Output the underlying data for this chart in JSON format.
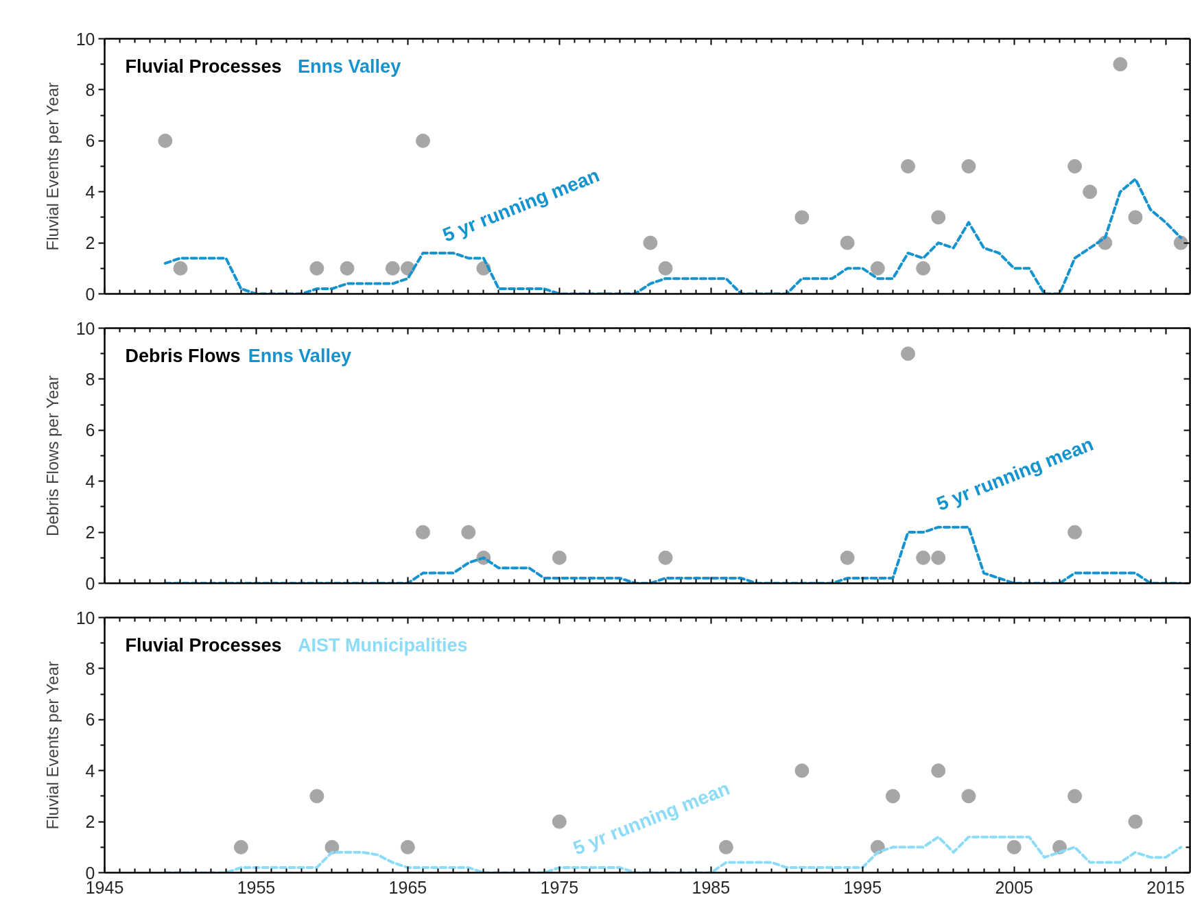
{
  "chart_data": [
    {
      "type": "scatter",
      "title": "Fluvial Processes",
      "ylabel": "Fluvial Events per Year",
      "tick_labels": "y",
      "xlim": [
        1945,
        2016.6
      ],
      "xticks": [
        1945,
        1955,
        1965,
        1975,
        1985,
        1995,
        2005,
        2015
      ],
      "ylim": [
        0,
        10
      ],
      "yticks": [
        0,
        2,
        4,
        6,
        8,
        10
      ],
      "series": [
        {
          "marker": "circle",
          "color": "#a6a6a6",
          "x": [
            1949,
            1950,
            1959,
            1961,
            1964,
            1965,
            1966,
            1970,
            1981,
            1982,
            1991,
            1994,
            1996,
            1998,
            1999,
            2000,
            2002,
            2009,
            2010,
            2011,
            2012,
            2013,
            2016
          ],
          "values": [
            6,
            1,
            1,
            1,
            1,
            1,
            6,
            1,
            2,
            1,
            3,
            2,
            1,
            5,
            1,
            3,
            5,
            5,
            4,
            2,
            9,
            3,
            2
          ]
        },
        {
          "type": "line",
          "name": "Enns Valley",
          "color": "#1493cf",
          "line_style": "dashed",
          "x": [
            1949,
            1950,
            1951,
            1952,
            1953,
            1954,
            1955,
            1956,
            1957,
            1958,
            1959,
            1960,
            1961,
            1962,
            1963,
            1964,
            1965,
            1966,
            1967,
            1968,
            1969,
            1970,
            1971,
            1972,
            1973,
            1974,
            1975,
            1976,
            1977,
            1978,
            1979,
            1980,
            1981,
            1982,
            1983,
            1984,
            1985,
            1986,
            1987,
            1988,
            1989,
            1990,
            1991,
            1992,
            1993,
            1994,
            1995,
            1996,
            1997,
            1998,
            1999,
            2000,
            2001,
            2002,
            2003,
            2004,
            2005,
            2006,
            2007,
            2008,
            2009,
            2010,
            2011,
            2012,
            2013,
            2014,
            2015,
            2016
          ],
          "values": [
            1.2,
            1.4,
            1.4,
            1.4,
            1.4,
            0.2,
            0,
            0,
            0,
            0,
            0.2,
            0.2,
            0.4,
            0.4,
            0.4,
            0.4,
            0.6,
            1.6,
            1.6,
            1.6,
            1.4,
            1.4,
            0.2,
            0.2,
            0.2,
            0.2,
            0,
            0,
            0,
            0,
            0,
            0,
            0.4,
            0.6,
            0.6,
            0.6,
            0.6,
            0.6,
            0,
            0,
            0,
            0,
            0.6,
            0.6,
            0.6,
            1.0,
            1.0,
            0.6,
            0.6,
            1.6,
            1.4,
            2.0,
            1.8,
            2.8,
            1.8,
            1.6,
            1.0,
            1.0,
            0,
            0,
            1.4,
            1.8,
            2.2,
            4.0,
            4.5,
            3.3,
            2.8,
            2.2
          ]
        }
      ],
      "annotations": [
        "5 yr running mean"
      ]
    },
    {
      "type": "scatter",
      "title": "Debris Flows",
      "ylabel": "Debris Flows per Year",
      "tick_labels": "y",
      "xlim": [
        1945,
        2016.6
      ],
      "xticks": [
        1945,
        1955,
        1965,
        1975,
        1985,
        1995,
        2005,
        2015
      ],
      "ylim": [
        0,
        10
      ],
      "yticks": [
        0,
        2,
        4,
        6,
        8,
        10
      ],
      "series": [
        {
          "marker": "circle",
          "color": "#a6a6a6",
          "x": [
            1966,
            1969,
            1970,
            1975,
            1982,
            1994,
            1998,
            1999,
            2000,
            2009
          ],
          "values": [
            2,
            2,
            1,
            1,
            1,
            1,
            9,
            1,
            1,
            2
          ]
        },
        {
          "type": "line",
          "name": "Enns Valley",
          "color": "#1493cf",
          "line_style": "dashed",
          "x": [
            1949,
            1950,
            1951,
            1952,
            1953,
            1954,
            1955,
            1956,
            1957,
            1958,
            1959,
            1960,
            1961,
            1962,
            1963,
            1964,
            1965,
            1966,
            1967,
            1968,
            1969,
            1970,
            1971,
            1972,
            1973,
            1974,
            1975,
            1976,
            1977,
            1978,
            1979,
            1980,
            1981,
            1982,
            1983,
            1984,
            1985,
            1986,
            1987,
            1988,
            1989,
            1990,
            1991,
            1992,
            1993,
            1994,
            1995,
            1996,
            1997,
            1998,
            1999,
            2000,
            2001,
            2002,
            2003,
            2004,
            2005,
            2006,
            2007,
            2008,
            2009,
            2010,
            2011,
            2012,
            2013,
            2014,
            2015,
            2016
          ],
          "values": [
            0,
            0,
            0,
            0,
            0,
            0,
            0,
            0,
            0,
            0,
            0,
            0,
            0,
            0,
            0,
            0,
            0,
            0.4,
            0.4,
            0.4,
            0.8,
            1.0,
            0.6,
            0.6,
            0.6,
            0.2,
            0.2,
            0.2,
            0.2,
            0.2,
            0.2,
            0,
            0,
            0.2,
            0.2,
            0.2,
            0.2,
            0.2,
            0.2,
            0,
            0,
            0,
            0,
            0,
            0,
            0.2,
            0.2,
            0.2,
            0.2,
            2.0,
            2.0,
            2.2,
            2.2,
            2.2,
            0.4,
            0.2,
            0,
            0,
            0,
            0,
            0.4,
            0.4,
            0.4,
            0.4,
            0.4,
            0,
            0,
            0
          ]
        }
      ],
      "annotations": [
        "5 yr running mean"
      ]
    },
    {
      "type": "scatter",
      "title": "Fluvial Processes",
      "ylabel": "Fluvial Events per Year",
      "xlim": [
        1945,
        2016.6
      ],
      "xticks": [
        1945,
        1955,
        1965,
        1975,
        1985,
        1995,
        2005,
        2015
      ],
      "ylim": [
        0,
        10
      ],
      "yticks": [
        0,
        2,
        4,
        6,
        8,
        10
      ],
      "series": [
        {
          "marker": "circle",
          "color": "#a6a6a6",
          "x": [
            1954,
            1959,
            1960,
            1965,
            1975,
            1986,
            1991,
            1996,
            1997,
            2000,
            2002,
            2005,
            2008,
            2009,
            2013
          ],
          "values": [
            1,
            3,
            1,
            1,
            2,
            1,
            4,
            1,
            3,
            4,
            3,
            1,
            1,
            3,
            2
          ]
        },
        {
          "type": "line",
          "name": "AIST Municipalities",
          "color": "#8cdcf8",
          "line_style": "dashed",
          "x": [
            1949,
            1950,
            1951,
            1952,
            1953,
            1954,
            1955,
            1956,
            1957,
            1958,
            1959,
            1960,
            1961,
            1962,
            1963,
            1964,
            1965,
            1966,
            1967,
            1968,
            1969,
            1970,
            1971,
            1972,
            1973,
            1974,
            1975,
            1976,
            1977,
            1978,
            1979,
            1980,
            1981,
            1982,
            1983,
            1984,
            1985,
            1986,
            1987,
            1988,
            1989,
            1990,
            1991,
            1992,
            1993,
            1994,
            1995,
            1996,
            1997,
            1998,
            1999,
            2000,
            2001,
            2002,
            2003,
            2004,
            2005,
            2006,
            2007,
            2008,
            2009,
            2010,
            2011,
            2012,
            2013,
            2014,
            2015,
            2016
          ],
          "values": [
            0,
            0,
            0,
            0,
            0,
            0.2,
            0.2,
            0.2,
            0.2,
            0.2,
            0.2,
            0.8,
            0.8,
            0.8,
            0.7,
            0.4,
            0.2,
            0.2,
            0.2,
            0.2,
            0.2,
            0,
            0,
            0,
            0,
            0,
            0.2,
            0.2,
            0.2,
            0.2,
            0.2,
            0,
            0,
            0,
            0,
            0,
            0,
            0.4,
            0.4,
            0.4,
            0.4,
            0.2,
            0.2,
            0.2,
            0.2,
            0.2,
            0.2,
            0.8,
            1.0,
            1.0,
            1.0,
            1.4,
            0.8,
            1.4,
            1.4,
            1.4,
            1.4,
            1.4,
            0.6,
            0.8,
            1.0,
            0.4,
            0.4,
            0.4,
            0.8,
            0.6,
            0.6,
            1.0
          ]
        }
      ],
      "annotations": [
        "5 yr running mean"
      ]
    }
  ]
}
